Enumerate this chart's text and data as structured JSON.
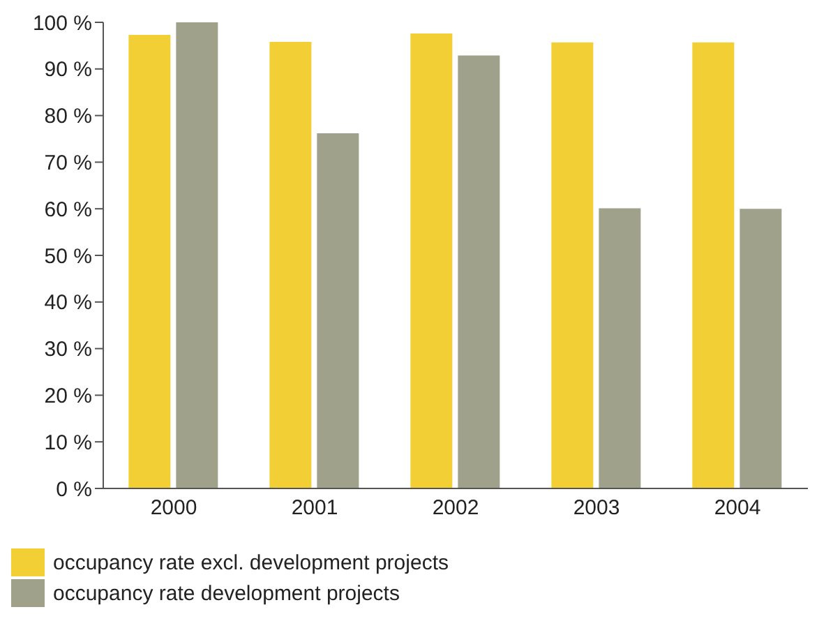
{
  "chart_data": {
    "type": "bar",
    "categories": [
      "2000",
      "2001",
      "2002",
      "2003",
      "2004"
    ],
    "series": [
      {
        "name": "occupancy rate excl. development projects",
        "color": "#f2d035",
        "values": [
          97.3,
          95.8,
          97.6,
          95.7,
          95.7
        ]
      },
      {
        "name": "occupancy rate development projects",
        "color": "#a0a18a",
        "values": [
          100,
          76.2,
          92.9,
          60.1,
          60
        ]
      }
    ],
    "ylim": [
      0,
      100
    ],
    "yticks": [
      {
        "value": 0,
        "label": "0 %"
      },
      {
        "value": 10,
        "label": "10 %"
      },
      {
        "value": 20,
        "label": "20 %"
      },
      {
        "value": 30,
        "label": "30 %"
      },
      {
        "value": 40,
        "label": "40 %"
      },
      {
        "value": 50,
        "label": "50 %"
      },
      {
        "value": 60,
        "label": "60 %"
      },
      {
        "value": 70,
        "label": "70 %"
      },
      {
        "value": 80,
        "label": "80 %"
      },
      {
        "value": 90,
        "label": "90 %"
      },
      {
        "value": 100,
        "label": "100 %"
      }
    ],
    "legend": "bottom left"
  }
}
